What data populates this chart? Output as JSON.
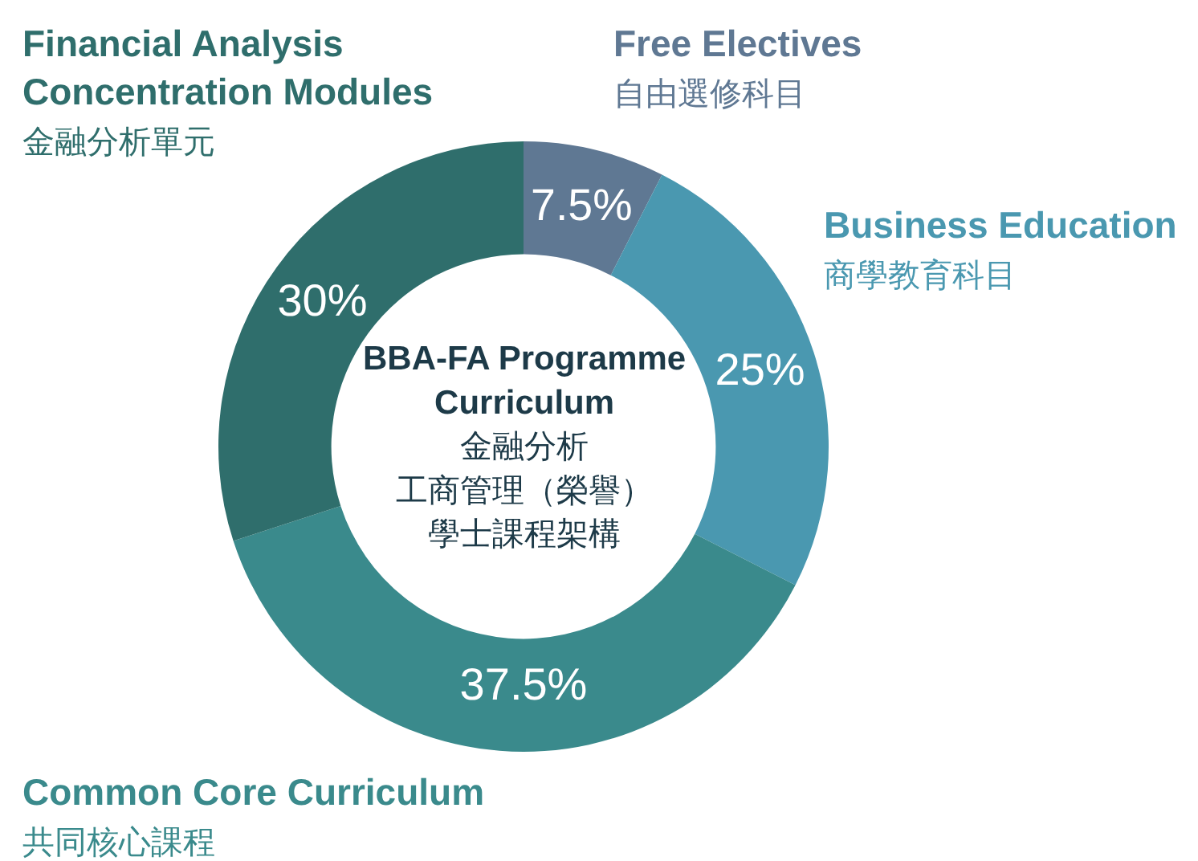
{
  "chart_data": {
    "type": "donut",
    "title": "BBA-FA Programme\nCurriculum",
    "annotations": [
      "金融分析",
      "工商管理（榮譽）",
      "學士課程架構"
    ],
    "categories": [
      "Free Electives\n自由選修科目",
      "Business Education\n商學教育科目",
      "Common Core Curriculum\n共同核心課程",
      "Financial Analysis\nConcentration Modules\n金融分析單元"
    ],
    "values": [
      7.5,
      25,
      37.5,
      30
    ],
    "value_labels": [
      "7.5%",
      "25%",
      "37.5%",
      "30%"
    ],
    "colors": [
      "#5f7893",
      "#4a98b0",
      "#3a8a8c",
      "#2f6e6c"
    ],
    "legend": false
  }
}
